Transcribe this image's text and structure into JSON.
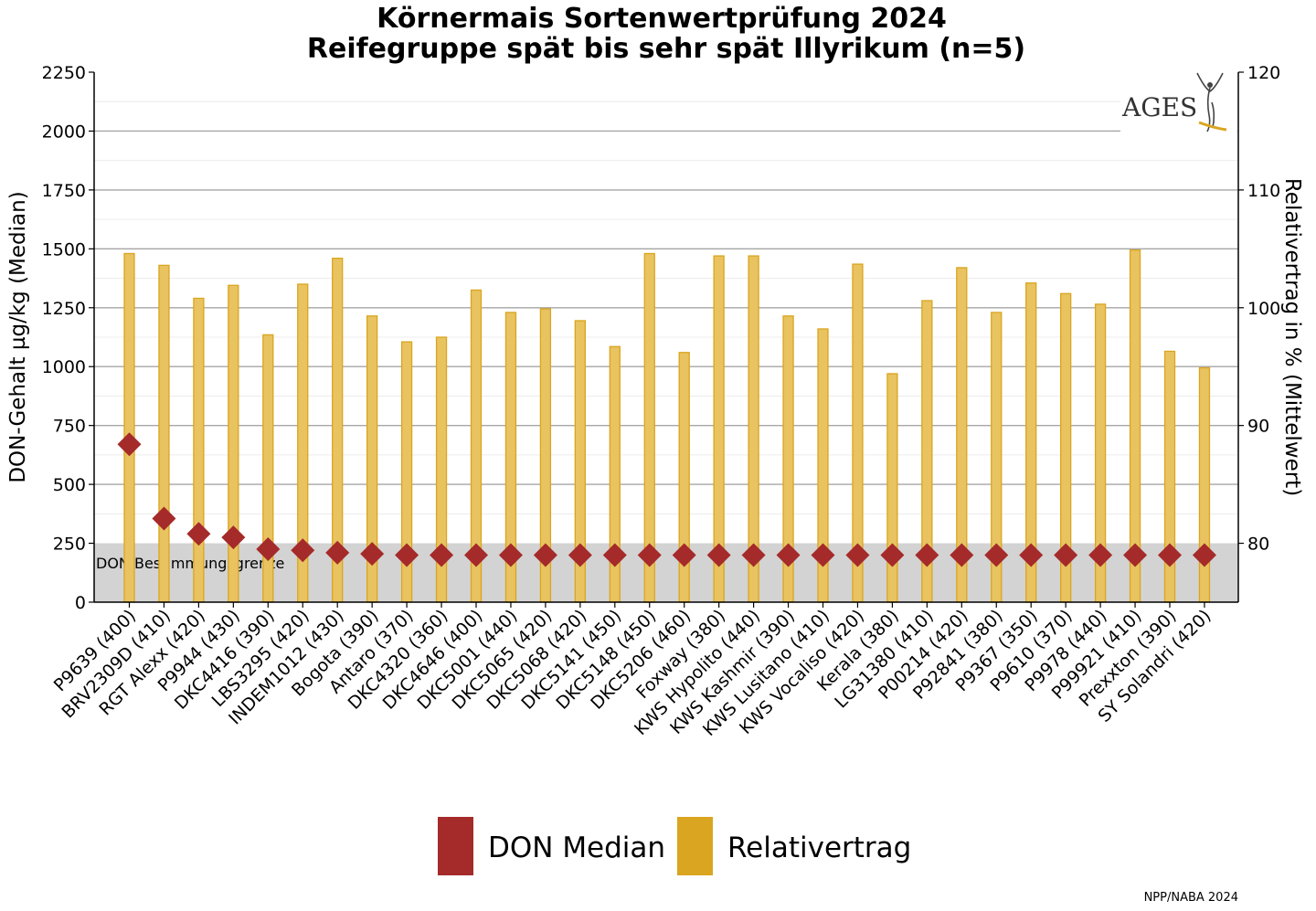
{
  "chart_data": {
    "type": "bar",
    "title": "Körnermais Sortenwertprüfung 2024",
    "subtitle": "Reifegruppe spät bis sehr spät Illyrikum (n=5)",
    "ylabel": "DON-Gehalt µg/kg (Median)",
    "y2label": "Relativertrag in % (Mittelwert)",
    "ylim": [
      0,
      2250
    ],
    "y2lim": [
      75,
      120
    ],
    "yticks": [
      "0",
      "250",
      "500",
      "750",
      "1000",
      "1250",
      "1500",
      "1750",
      "2000",
      "2250"
    ],
    "y2ticks": [
      "80",
      "90",
      "100",
      "110",
      "120"
    ],
    "grid": true,
    "legend_position": "bottom",
    "categories": [
      "P9639 (400)",
      "BRV2309D (410)",
      "RGT Alexx (420)",
      "P9944 (430)",
      "DKC4416 (390)",
      "LBS3295 (420)",
      "INDEM1012 (430)",
      "Bogota (390)",
      "Antaro (370)",
      "DKC4320 (360)",
      "DKC4646 (400)",
      "DKC5001 (440)",
      "DKC5065 (420)",
      "DKC5068 (420)",
      "DKC5141 (450)",
      "DKC5148 (450)",
      "DKC5206 (460)",
      "Foxway (380)",
      "KWS Hypolito (440)",
      "KWS Kashmir (390)",
      "KWS Lusitano (410)",
      "KWS Vocaliso (420)",
      "Kerala (380)",
      "LG31380 (410)",
      "P00214 (420)",
      "P92841 (380)",
      "P9367 (350)",
      "P9610 (370)",
      "P9978 (440)",
      "P99921 (410)",
      "Prexxton (390)",
      "SY Solandri (420)"
    ],
    "series": [
      {
        "name": "DON Median",
        "kind": "diamond",
        "axis": "left",
        "color": "#a52a2a",
        "values": [
          670,
          355,
          290,
          275,
          225,
          220,
          210,
          205,
          200,
          200,
          200,
          200,
          200,
          200,
          200,
          200,
          200,
          200,
          200,
          200,
          200,
          200,
          200,
          200,
          200,
          200,
          200,
          200,
          200,
          200,
          200,
          200
        ]
      },
      {
        "name": "Relativertrag",
        "kind": "bar",
        "axis": "right",
        "color": "#daa520",
        "values": [
          104.6,
          103.6,
          100.8,
          101.9,
          97.7,
          102.0,
          104.2,
          99.3,
          97.1,
          97.5,
          101.5,
          99.6,
          99.9,
          98.9,
          96.7,
          104.6,
          96.2,
          104.4,
          104.4,
          99.3,
          98.2,
          103.7,
          94.4,
          100.6,
          103.4,
          99.6,
          102.1,
          101.2,
          100.3,
          104.9,
          96.3,
          94.9
        ]
      }
    ],
    "annotations": {
      "band_label": "DON Bestimmungsgrenze",
      "band_upper": 250
    }
  },
  "logo": {
    "text": "AGES"
  },
  "source": "NPP/NABA 2024",
  "colors": {
    "don": "#a52a2a",
    "yield_fill": "#e8c360",
    "yield_stroke": "#daa520",
    "legend_yield": "#daa520",
    "band": "#d3d3d3",
    "grid_major": "#a6a6a6",
    "grid_minor": "#ececec"
  }
}
